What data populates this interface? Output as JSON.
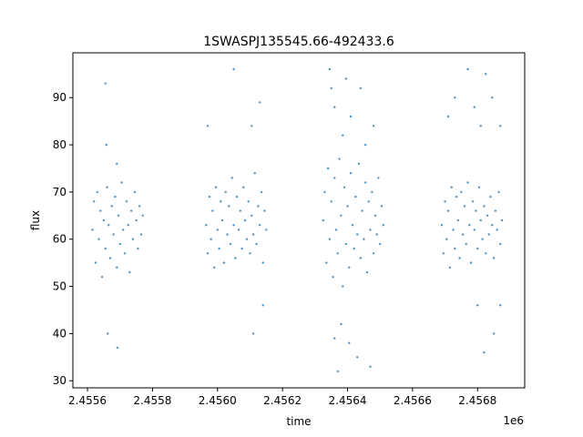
{
  "chart_data": {
    "type": "scatter",
    "title": "1SWASPJ135545.66-492433.6",
    "xlabel": "time",
    "ylabel": "flux",
    "x_offset_label": "1e6",
    "xlim": [
      2455555,
      2456945
    ],
    "ylim": [
      28.5,
      99.5
    ],
    "grid": false,
    "marker_color": "#1f77b4",
    "x_ticks": [
      {
        "value": 2455600,
        "label": "2.4556"
      },
      {
        "value": 2455800,
        "label": "2.4558"
      },
      {
        "value": 2456000,
        "label": "2.4560"
      },
      {
        "value": 2456200,
        "label": "2.4562"
      },
      {
        "value": 2456400,
        "label": "2.4564"
      },
      {
        "value": 2456600,
        "label": "2.4566"
      },
      {
        "value": 2456800,
        "label": "2.4568"
      }
    ],
    "y_ticks": [
      {
        "value": 30,
        "label": "30"
      },
      {
        "value": 40,
        "label": "40"
      },
      {
        "value": 50,
        "label": "50"
      },
      {
        "value": 60,
        "label": "60"
      },
      {
        "value": 70,
        "label": "70"
      },
      {
        "value": 80,
        "label": "80"
      },
      {
        "value": 90,
        "label": "90"
      }
    ],
    "series": [
      {
        "points": [
          [
            2455615,
            62
          ],
          [
            2455620,
            68
          ],
          [
            2455625,
            55
          ],
          [
            2455630,
            70
          ],
          [
            2455635,
            60
          ],
          [
            2455640,
            66
          ],
          [
            2455645,
            52
          ],
          [
            2455650,
            64
          ],
          [
            2455655,
            58
          ],
          [
            2455660,
            71
          ],
          [
            2455665,
            63
          ],
          [
            2455670,
            56
          ],
          [
            2455675,
            67
          ],
          [
            2455680,
            61
          ],
          [
            2455685,
            69
          ],
          [
            2455690,
            54
          ],
          [
            2455695,
            65
          ],
          [
            2455700,
            59
          ],
          [
            2455705,
            72
          ],
          [
            2455710,
            62
          ],
          [
            2455715,
            57
          ],
          [
            2455720,
            68
          ],
          [
            2455725,
            63
          ],
          [
            2455730,
            53
          ],
          [
            2455735,
            66
          ],
          [
            2455740,
            60
          ],
          [
            2455745,
            70
          ],
          [
            2455750,
            64
          ],
          [
            2455755,
            58
          ],
          [
            2455760,
            67
          ],
          [
            2455765,
            61
          ],
          [
            2455770,
            65
          ],
          [
            2455658,
            80
          ],
          [
            2455655,
            93
          ],
          [
            2455662,
            40
          ],
          [
            2455692,
            37
          ],
          [
            2455690,
            76
          ],
          [
            2455965,
            63
          ],
          [
            2455970,
            57
          ],
          [
            2455975,
            69
          ],
          [
            2455980,
            60
          ],
          [
            2455985,
            66
          ],
          [
            2455990,
            54
          ],
          [
            2455995,
            71
          ],
          [
            2456000,
            62
          ],
          [
            2456005,
            58
          ],
          [
            2456010,
            68
          ],
          [
            2456015,
            64
          ],
          [
            2456020,
            55
          ],
          [
            2456025,
            70
          ],
          [
            2456030,
            61
          ],
          [
            2456035,
            67
          ],
          [
            2456040,
            59
          ],
          [
            2456045,
            73
          ],
          [
            2456050,
            63
          ],
          [
            2456055,
            56
          ],
          [
            2456060,
            69
          ],
          [
            2456065,
            62
          ],
          [
            2456070,
            66
          ],
          [
            2456075,
            58
          ],
          [
            2456080,
            71
          ],
          [
            2456085,
            64
          ],
          [
            2456090,
            60
          ],
          [
            2456095,
            68
          ],
          [
            2456100,
            57
          ],
          [
            2456105,
            65
          ],
          [
            2456110,
            61
          ],
          [
            2456115,
            74
          ],
          [
            2456120,
            59
          ],
          [
            2456125,
            67
          ],
          [
            2456130,
            63
          ],
          [
            2456135,
            70
          ],
          [
            2456140,
            55
          ],
          [
            2456145,
            66
          ],
          [
            2456150,
            62
          ],
          [
            2455970,
            84
          ],
          [
            2456050,
            96
          ],
          [
            2456105,
            84
          ],
          [
            2456110,
            40
          ],
          [
            2456130,
            89
          ],
          [
            2456140,
            46
          ],
          [
            2456325,
            64
          ],
          [
            2456330,
            70
          ],
          [
            2456335,
            55
          ],
          [
            2456340,
            75
          ],
          [
            2456345,
            60
          ],
          [
            2456350,
            68
          ],
          [
            2456355,
            52
          ],
          [
            2456360,
            73
          ],
          [
            2456365,
            62
          ],
          [
            2456370,
            57
          ],
          [
            2456375,
            77
          ],
          [
            2456380,
            65
          ],
          [
            2456385,
            50
          ],
          [
            2456390,
            71
          ],
          [
            2456395,
            59
          ],
          [
            2456400,
            67
          ],
          [
            2456405,
            54
          ],
          [
            2456410,
            74
          ],
          [
            2456415,
            63
          ],
          [
            2456420,
            58
          ],
          [
            2456425,
            69
          ],
          [
            2456430,
            61
          ],
          [
            2456435,
            76
          ],
          [
            2456440,
            56
          ],
          [
            2456445,
            66
          ],
          [
            2456450,
            60
          ],
          [
            2456455,
            72
          ],
          [
            2456460,
            53
          ],
          [
            2456465,
            68
          ],
          [
            2456470,
            62
          ],
          [
            2456475,
            70
          ],
          [
            2456480,
            57
          ],
          [
            2456485,
            65
          ],
          [
            2456490,
            61
          ],
          [
            2456495,
            73
          ],
          [
            2456500,
            59
          ],
          [
            2456505,
            67
          ],
          [
            2456510,
            63
          ],
          [
            2456345,
            96
          ],
          [
            2456350,
            92
          ],
          [
            2456360,
            88
          ],
          [
            2456370,
            32
          ],
          [
            2456385,
            82
          ],
          [
            2456395,
            94
          ],
          [
            2456405,
            38
          ],
          [
            2456410,
            86
          ],
          [
            2456430,
            35
          ],
          [
            2456440,
            92
          ],
          [
            2456455,
            80
          ],
          [
            2456470,
            33
          ],
          [
            2456480,
            84
          ],
          [
            2456360,
            39
          ],
          [
            2456380,
            42
          ],
          [
            2456690,
            63
          ],
          [
            2456695,
            57
          ],
          [
            2456700,
            68
          ],
          [
            2456705,
            60
          ],
          [
            2456710,
            66
          ],
          [
            2456715,
            54
          ],
          [
            2456720,
            71
          ],
          [
            2456725,
            62
          ],
          [
            2456730,
            58
          ],
          [
            2456735,
            69
          ],
          [
            2456740,
            64
          ],
          [
            2456745,
            56
          ],
          [
            2456750,
            70
          ],
          [
            2456755,
            61
          ],
          [
            2456760,
            67
          ],
          [
            2456765,
            59
          ],
          [
            2456770,
            72
          ],
          [
            2456775,
            63
          ],
          [
            2456780,
            55
          ],
          [
            2456785,
            68
          ],
          [
            2456790,
            62
          ],
          [
            2456795,
            66
          ],
          [
            2456800,
            58
          ],
          [
            2456805,
            71
          ],
          [
            2456810,
            64
          ],
          [
            2456815,
            60
          ],
          [
            2456820,
            67
          ],
          [
            2456825,
            57
          ],
          [
            2456830,
            65
          ],
          [
            2456835,
            61
          ],
          [
            2456840,
            69
          ],
          [
            2456845,
            63
          ],
          [
            2456850,
            56
          ],
          [
            2456855,
            66
          ],
          [
            2456860,
            62
          ],
          [
            2456865,
            70
          ],
          [
            2456870,
            59
          ],
          [
            2456875,
            64
          ],
          [
            2456710,
            86
          ],
          [
            2456730,
            90
          ],
          [
            2456770,
            96
          ],
          [
            2456790,
            88
          ],
          [
            2456800,
            46
          ],
          [
            2456810,
            84
          ],
          [
            2456820,
            36
          ],
          [
            2456825,
            95
          ],
          [
            2456845,
            90
          ],
          [
            2456850,
            40
          ],
          [
            2456870,
            84
          ],
          [
            2456870,
            46
          ]
        ]
      }
    ]
  }
}
